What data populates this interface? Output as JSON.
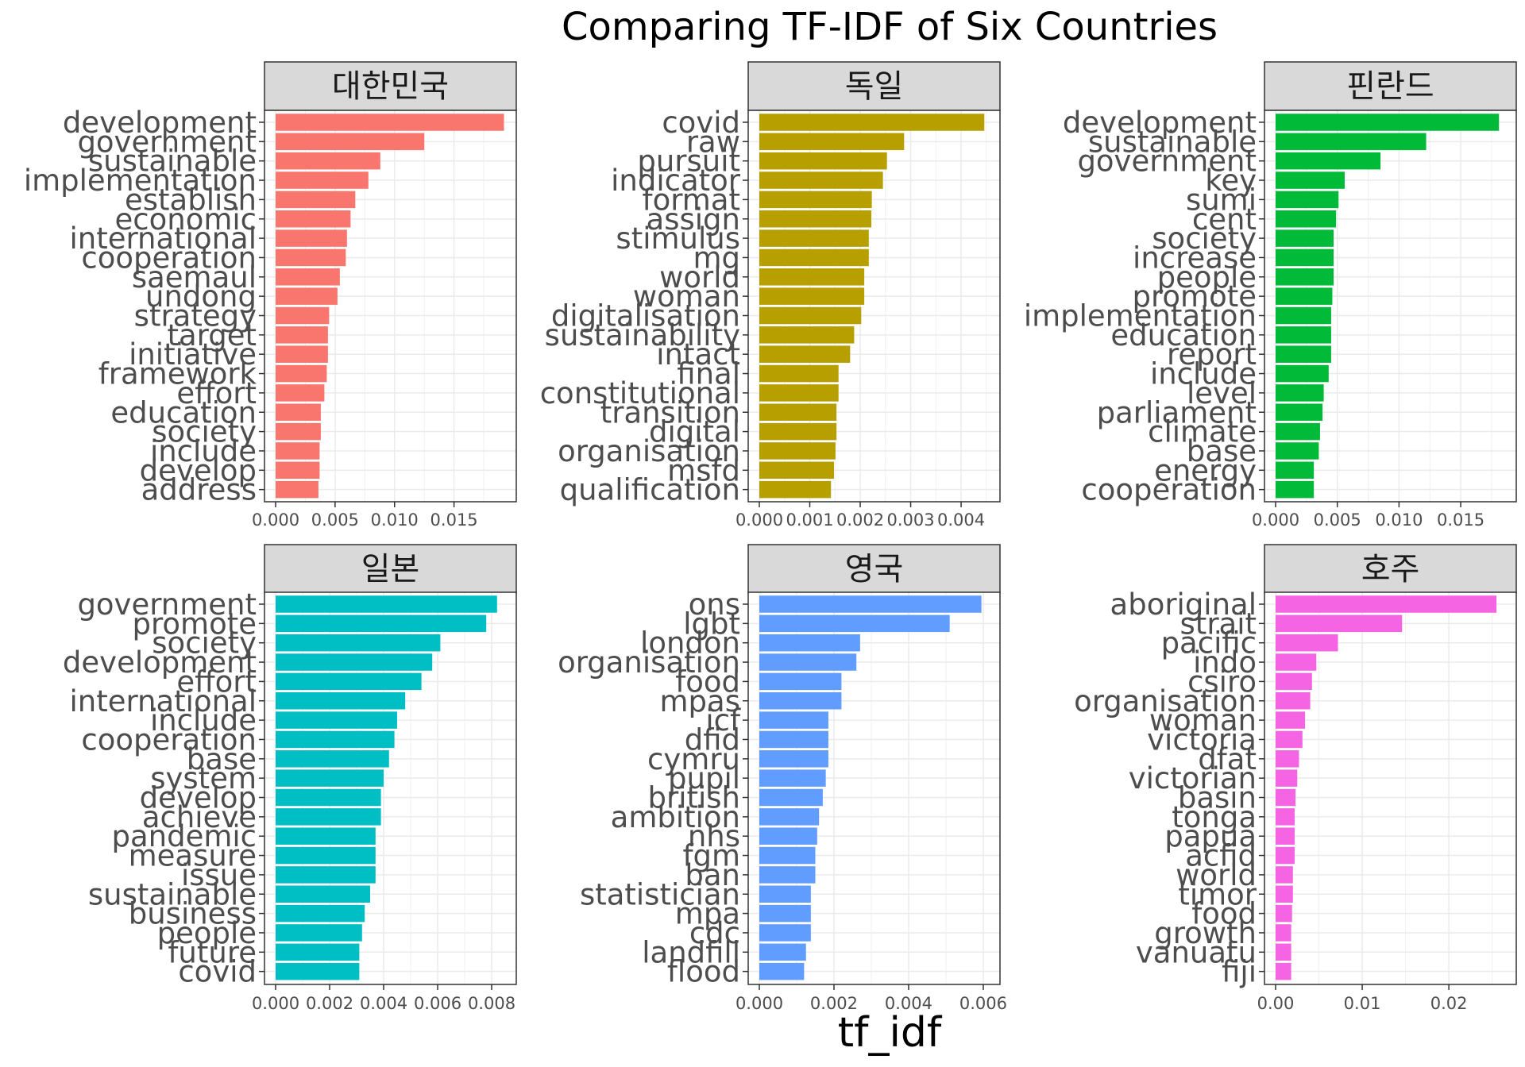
{
  "title": "Comparing TF-IDF of Six Countries",
  "xlabel": "tf_idf",
  "chart_data": {
    "type": "bar",
    "orientation": "horizontal",
    "layout": "facet grid 2 rows x 3 columns, independent scales",
    "grid": true,
    "panels": [
      {
        "country": "대한민국",
        "color": "#F8766D",
        "xlim": [
          0,
          0.0193
        ],
        "xticks": [
          0,
          0.005,
          0.01,
          0.015
        ],
        "xtick_labels": [
          "0.000",
          "0.005",
          "0.010",
          "0.015"
        ],
        "categories": [
          "development",
          "government",
          "sustainable",
          "implementation",
          "establish",
          "economic",
          "international",
          "cooperation",
          "saemaul",
          "undong",
          "strategy",
          "target",
          "initiative",
          "framework",
          "effort",
          "education",
          "society",
          "include",
          "develop",
          "address"
        ],
        "values": [
          0.0192,
          0.0125,
          0.0088,
          0.0078,
          0.0067,
          0.0063,
          0.006,
          0.0059,
          0.0054,
          0.0052,
          0.0045,
          0.0044,
          0.0044,
          0.0043,
          0.0041,
          0.0038,
          0.0038,
          0.0037,
          0.0037,
          0.0036
        ]
      },
      {
        "country": "독일",
        "color": "#B79F00",
        "xlim": [
          0,
          0.00455
        ],
        "xticks": [
          0,
          0.001,
          0.002,
          0.003,
          0.004
        ],
        "xtick_labels": [
          "0.000",
          "0.001",
          "0.002",
          "0.003",
          "0.004"
        ],
        "categories": [
          "covid",
          "raw",
          "pursuit",
          "indicator",
          "format",
          "assign",
          "stimulus",
          "mg",
          "world",
          "woman",
          "digitalisation",
          "sustainability",
          "intact",
          "final",
          "constitutional",
          "transition",
          "digital",
          "organisation",
          "msfd",
          "qualification"
        ],
        "values": [
          0.00446,
          0.00287,
          0.00253,
          0.00245,
          0.00223,
          0.00222,
          0.00217,
          0.00217,
          0.00208,
          0.00208,
          0.00202,
          0.00188,
          0.0018,
          0.00157,
          0.00157,
          0.00153,
          0.00153,
          0.00151,
          0.00148,
          0.00142
        ]
      },
      {
        "country": "핀란드",
        "color": "#00BA38",
        "xlim": [
          0,
          0.0186
        ],
        "xticks": [
          0,
          0.005,
          0.01,
          0.015
        ],
        "xtick_labels": [
          "0.000",
          "0.005",
          "0.010",
          "0.015"
        ],
        "categories": [
          "development",
          "sustainable",
          "government",
          "key",
          "sumi",
          "cent",
          "society",
          "increase",
          "people",
          "promote",
          "implementation",
          "education",
          "report",
          "include",
          "level",
          "parliament",
          "climate",
          "base",
          "energy",
          "cooperation"
        ],
        "values": [
          0.0181,
          0.0122,
          0.0085,
          0.0056,
          0.0051,
          0.0049,
          0.0047,
          0.0047,
          0.0047,
          0.0046,
          0.0045,
          0.0045,
          0.0045,
          0.0043,
          0.0039,
          0.0038,
          0.0036,
          0.0035,
          0.0031,
          0.0031
        ]
      },
      {
        "country": "일본",
        "color": "#00BFC4",
        "xlim": [
          0,
          0.0085
        ],
        "xticks": [
          0,
          0.002,
          0.004,
          0.006,
          0.008
        ],
        "xtick_labels": [
          "0.000",
          "0.002",
          "0.004",
          "0.006",
          "0.008"
        ],
        "categories": [
          "government",
          "promote",
          "society",
          "development",
          "effort",
          "international",
          "include",
          "cooperation",
          "base",
          "system",
          "develop",
          "achieve",
          "pandemic",
          "measure",
          "issue",
          "sustainable",
          "business",
          "people",
          "future",
          "covid"
        ],
        "values": [
          0.0082,
          0.0078,
          0.0061,
          0.0058,
          0.0054,
          0.0048,
          0.0045,
          0.0044,
          0.0042,
          0.004,
          0.0039,
          0.0039,
          0.0037,
          0.0037,
          0.0037,
          0.0035,
          0.0033,
          0.0032,
          0.0031,
          0.0031
        ]
      },
      {
        "country": "영국",
        "color": "#619CFF",
        "xlim": [
          0,
          0.00615
        ],
        "xticks": [
          0,
          0.002,
          0.004,
          0.006
        ],
        "xtick_labels": [
          "0.000",
          "0.002",
          "0.004",
          "0.006"
        ],
        "categories": [
          "ons",
          "lgbt",
          "london",
          "organisation",
          "food",
          "mpas",
          "icf",
          "dfid",
          "cymru",
          "pupil",
          "british",
          "ambition",
          "nhs",
          "fgm",
          "ban",
          "statistician",
          "mpa",
          "cdc",
          "landfill",
          "flood"
        ],
        "values": [
          0.00595,
          0.0051,
          0.0027,
          0.0026,
          0.0022,
          0.0022,
          0.00185,
          0.00185,
          0.00185,
          0.00178,
          0.0017,
          0.0016,
          0.00155,
          0.0015,
          0.0015,
          0.00138,
          0.00138,
          0.00138,
          0.00125,
          0.0012
        ]
      },
      {
        "country": "호주",
        "color": "#F564E3",
        "xlim": [
          0,
          0.0265
        ],
        "xticks": [
          0,
          0.01,
          0.02
        ],
        "xtick_labels": [
          "0.00",
          "0.01",
          "0.02"
        ],
        "categories": [
          "aboriginal",
          "strait",
          "pacific",
          "indo",
          "csiro",
          "organisation",
          "woman",
          "victoria",
          "dfat",
          "victorian",
          "basin",
          "tonga",
          "papua",
          "acfid",
          "world",
          "timor",
          "food",
          "growth",
          "vanuatu",
          "fiji"
        ],
        "values": [
          0.0255,
          0.0146,
          0.0072,
          0.0047,
          0.0042,
          0.004,
          0.0034,
          0.0031,
          0.0027,
          0.0025,
          0.0023,
          0.0022,
          0.0022,
          0.0022,
          0.002,
          0.002,
          0.0019,
          0.0018,
          0.0018,
          0.0018
        ]
      }
    ]
  }
}
